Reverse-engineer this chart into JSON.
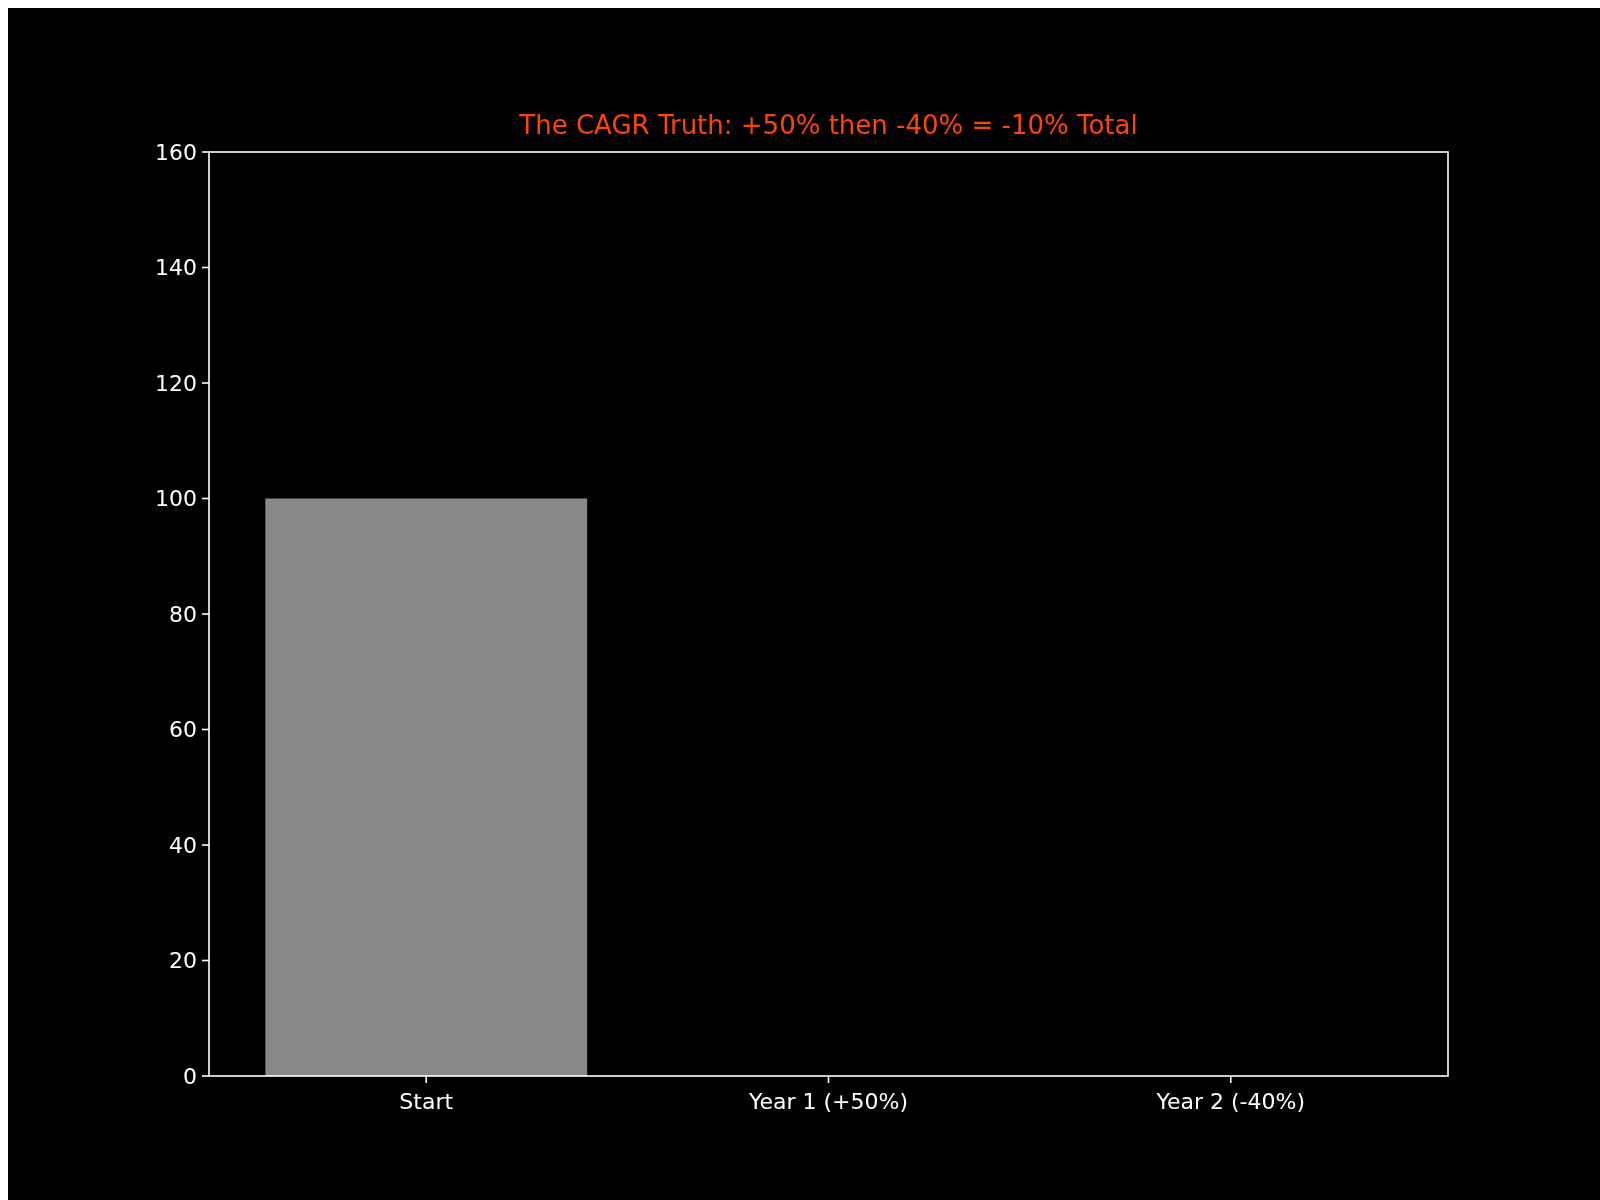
{
  "chart_data": {
    "type": "bar",
    "title": "The CAGR Truth: +50% then -40% = -10% Total",
    "categories": [
      "Start",
      "Year 1 (+50%)",
      "Year 2 (-40%)"
    ],
    "values": [
      100,
      null,
      null
    ],
    "color": "#888888",
    "ylim": [
      0,
      160
    ],
    "yticks": [
      0,
      20,
      40,
      60,
      80,
      100,
      120,
      140,
      160
    ],
    "grid": false
  }
}
